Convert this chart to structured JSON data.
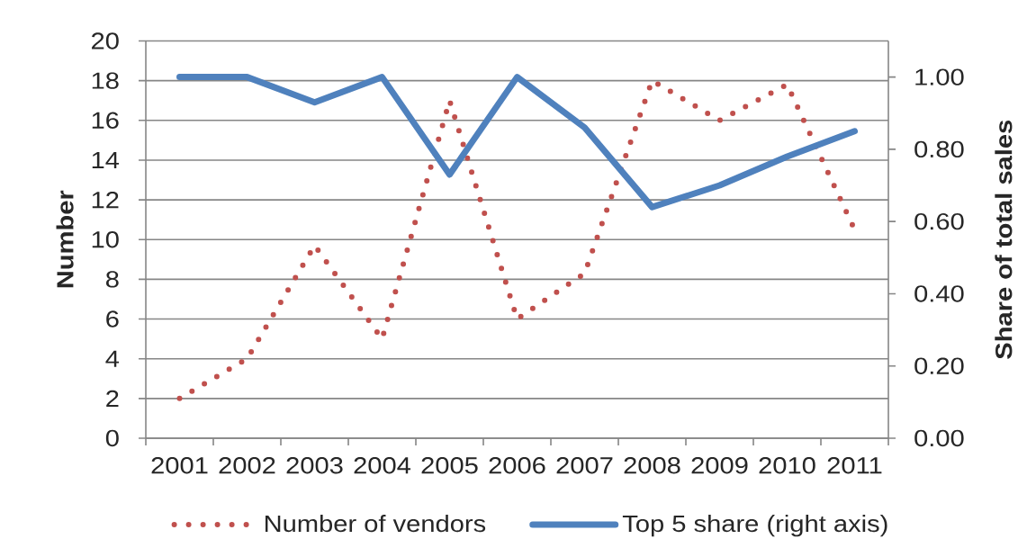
{
  "chart_data": {
    "type": "line",
    "categories": [
      "2001",
      "2002",
      "2003",
      "2004",
      "2005",
      "2006",
      "2007",
      "2008",
      "2009",
      "2010",
      "2011"
    ],
    "ylabel": "Number",
    "y2label": "Share of total sales",
    "ylim": [
      0,
      20
    ],
    "yticks": [
      0,
      2,
      4,
      6,
      8,
      10,
      12,
      14,
      16,
      18,
      20
    ],
    "y2lim": [
      0,
      1.1
    ],
    "y2ticks": [
      {
        "value": 0,
        "label": "0.00"
      },
      {
        "value": 0.2,
        "label": "0.20"
      },
      {
        "value": 0.4,
        "label": "0.40"
      },
      {
        "value": 0.6,
        "label": "0.60"
      },
      {
        "value": 0.8,
        "label": "0.80"
      },
      {
        "value": 1.0,
        "label": "1.00"
      }
    ],
    "grid": "y",
    "legend": "bottom",
    "marker": "none",
    "series": [
      {
        "name": "Number of vendors",
        "color": "#c0504d",
        "line_style": "dotted",
        "values": [
          2,
          4,
          9.7,
          5,
          17,
          6,
          8.3,
          18,
          16,
          17.8,
          10.5
        ]
      },
      {
        "name": "Top 5 share (right axis)",
        "color": "#4f81bd",
        "line_style": "solid",
        "axis": "y2",
        "values": [
          1.0,
          1.0,
          0.93,
          1.0,
          0.73,
          1.0,
          0.86,
          0.64,
          0.7,
          0.78,
          0.85
        ]
      }
    ]
  }
}
